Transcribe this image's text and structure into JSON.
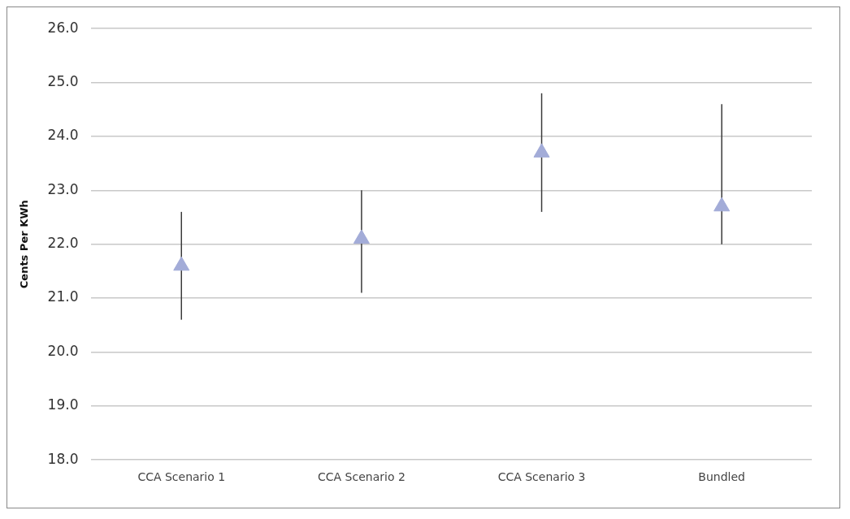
{
  "chart_data": {
    "type": "scatter",
    "ylabel": "Cents Per KWh",
    "categories": [
      "CCA Scenario 1",
      "CCA Scenario 2",
      "CCA Scenario 3",
      "Bundled"
    ],
    "values": [
      21.6,
      22.1,
      23.7,
      22.7
    ],
    "errors": [
      [
        20.6,
        22.6
      ],
      [
        21.1,
        23.0
      ],
      [
        22.6,
        24.8
      ],
      [
        22.0,
        24.6
      ]
    ],
    "color": "#a3acd8",
    "marker": "triangle",
    "grid": "y",
    "legend": false,
    "ylim": [
      18,
      26
    ],
    "yticks": [
      {
        "value": 18,
        "label": "18.0"
      },
      {
        "value": 19,
        "label": "19.0"
      },
      {
        "value": 20,
        "label": "20.0"
      },
      {
        "value": 21,
        "label": "21.0"
      },
      {
        "value": 22,
        "label": "22.0"
      },
      {
        "value": 23,
        "label": "23.0"
      },
      {
        "value": 24,
        "label": "24.0"
      },
      {
        "value": 25,
        "label": "25.0"
      },
      {
        "value": 26,
        "label": "26.0"
      }
    ]
  }
}
